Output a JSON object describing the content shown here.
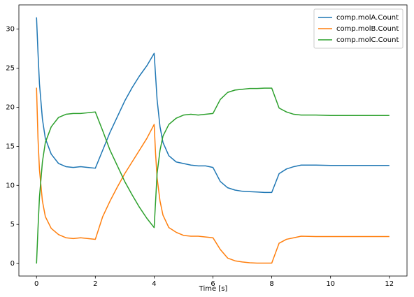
{
  "chart_data": {
    "type": "line",
    "x_label": "Time [s]",
    "x": [
      0,
      0.05,
      0.1,
      0.2,
      0.3,
      0.5,
      0.75,
      1,
      1.25,
      1.5,
      1.75,
      2,
      2.25,
      2.5,
      2.75,
      3,
      3.25,
      3.5,
      3.75,
      4,
      4.05,
      4.1,
      4.2,
      4.3,
      4.5,
      4.75,
      5,
      5.25,
      5.5,
      5.75,
      6,
      6.25,
      6.5,
      6.75,
      7,
      7.25,
      7.5,
      7.75,
      8,
      8.25,
      8.5,
      8.75,
      9,
      9.5,
      10,
      11,
      12
    ],
    "series": [
      {
        "name": "comp.molA.Count",
        "color": "#1f77b4",
        "values": [
          31.5,
          27,
          23,
          18.5,
          16,
          14,
          12.8,
          12.4,
          12.3,
          12.4,
          12.3,
          12.2,
          14.5,
          16.8,
          18.8,
          20.8,
          22.5,
          24,
          25.3,
          26.9,
          24,
          21,
          17.5,
          15.5,
          13.8,
          13,
          12.8,
          12.6,
          12.5,
          12.5,
          12.3,
          10.5,
          9.7,
          9.4,
          9.25,
          9.2,
          9.15,
          9.1,
          9.1,
          11.5,
          12.1,
          12.4,
          12.6,
          12.6,
          12.55,
          12.55,
          12.55
        ]
      },
      {
        "name": "comp.molB.Count",
        "color": "#ff7f0e",
        "values": [
          22.5,
          16,
          12,
          8,
          6,
          4.5,
          3.7,
          3.3,
          3.2,
          3.3,
          3.2,
          3.1,
          6,
          8,
          9.8,
          11.5,
          13,
          14.5,
          16,
          17.8,
          14,
          11,
          8,
          6.2,
          4.6,
          4,
          3.6,
          3.5,
          3.5,
          3.4,
          3.3,
          1.8,
          0.7,
          0.35,
          0.2,
          0.1,
          0.05,
          0.05,
          0.05,
          2.6,
          3.1,
          3.3,
          3.5,
          3.45,
          3.45,
          3.45,
          3.45
        ]
      },
      {
        "name": "comp.molC.Count",
        "color": "#2ca02c",
        "values": [
          0,
          4.5,
          8.5,
          13,
          15.5,
          17.5,
          18.7,
          19.1,
          19.2,
          19.2,
          19.3,
          19.4,
          17,
          14.5,
          12.5,
          10.5,
          8.8,
          7.2,
          5.8,
          4.6,
          8,
          11.5,
          14.5,
          16.3,
          17.8,
          18.6,
          19,
          19.1,
          19,
          19.1,
          19.2,
          21,
          21.9,
          22.2,
          22.3,
          22.4,
          22.4,
          22.45,
          22.45,
          19.9,
          19.4,
          19.1,
          19,
          19,
          18.95,
          18.95,
          18.95
        ]
      }
    ],
    "xlim": [
      -0.6,
      12.6
    ],
    "ylim": [
      -1.6,
      33.1
    ],
    "xticks": [
      0,
      2,
      4,
      6,
      8,
      10,
      12
    ],
    "yticks": [
      0,
      5,
      10,
      15,
      20,
      25,
      30
    ],
    "legend": "upper right"
  }
}
